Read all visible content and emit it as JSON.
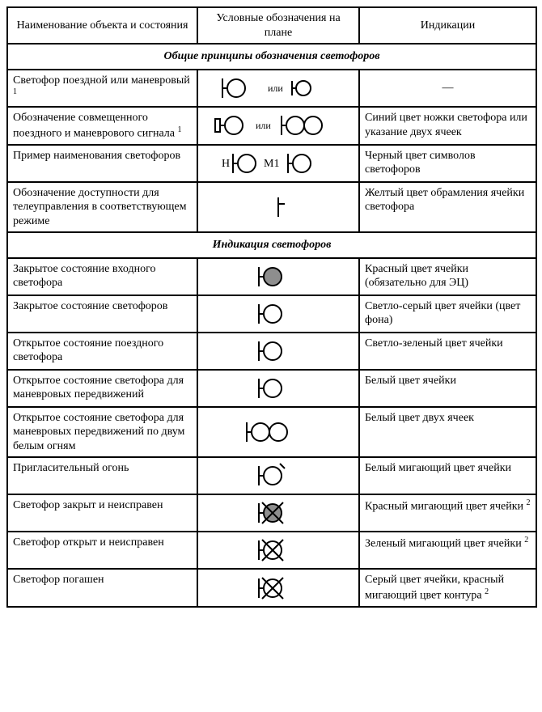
{
  "columns": {
    "col1": "Наименование объекта и состояния",
    "col2": "Условные обозначения на плане",
    "col3": "Индикации"
  },
  "col_widths": {
    "c1": 235,
    "c2": 200,
    "c3": 219
  },
  "section1_title": "Общие принципы обозначения светофоров",
  "section2_title": "Индикация светофоров",
  "rows1": [
    {
      "name": "Светофор поездной или маневровый ¹",
      "indication": "—",
      "symbol": "sig_or_sig_small"
    },
    {
      "name": "Обозначение совмещенного поездного и маневрового сигнала ¹",
      "indication": "Синий цвет ножки светофора или указание двух ячеек",
      "symbol": "box_or_double"
    },
    {
      "name": "Пример наименования светофоров",
      "indication": "Черный цвет символов светофоров",
      "symbol": "named"
    },
    {
      "name": "Обозначение доступности для телеуправления в соответствующем режиме",
      "indication": "Желтый цвет обрамления ячейки светофора",
      "symbol": "bar"
    }
  ],
  "rows2": [
    {
      "name": "Закрытое состояние входного светофора",
      "indication": "Красный цвет ячейки (обязательно для ЭЦ)",
      "symbol": "filled_gray"
    },
    {
      "name": "Закрытое состояние светофоров",
      "indication": "Светло-серый цвет ячейки (цвет фона)",
      "symbol": "open"
    },
    {
      "name": "Открытое состояние поездного светофора",
      "indication": "Светло-зеленый цвет ячейки",
      "symbol": "open"
    },
    {
      "name": "Открытое состояние светофора для маневровых передвижений",
      "indication": "Белый цвет ячейки",
      "symbol": "open"
    },
    {
      "name": "Открытое состояние светофора для маневровых передвижений по двум белым огням",
      "indication": "Белый цвет двух ячеек",
      "symbol": "double"
    },
    {
      "name": "Пригласительный огонь",
      "indication": "Белый мигающий цвет ячейки",
      "symbol": "open_tick"
    },
    {
      "name": "Светофор закрыт и неисправен",
      "indication": "Красный мигающий цвет ячейки ²",
      "symbol": "filled_cross"
    },
    {
      "name": "Светофор открыт и неисправен",
      "indication": "Зеленый мигающий цвет ячейки ²",
      "symbol": "open_cross"
    },
    {
      "name": "Светофор погашен",
      "indication": "Серый цвет ячейки, красный мигающий цвет контура ²",
      "symbol": "open_cross_small"
    }
  ],
  "connector_text": "или",
  "labels": {
    "H": "Н",
    "M1": "М1"
  },
  "style": {
    "stroke": "#000000",
    "stroke_width": 2,
    "fill_gray": "#8e8e8e",
    "bg": "#ffffff",
    "font_family": "Times New Roman",
    "cell_fontsize": 14
  }
}
